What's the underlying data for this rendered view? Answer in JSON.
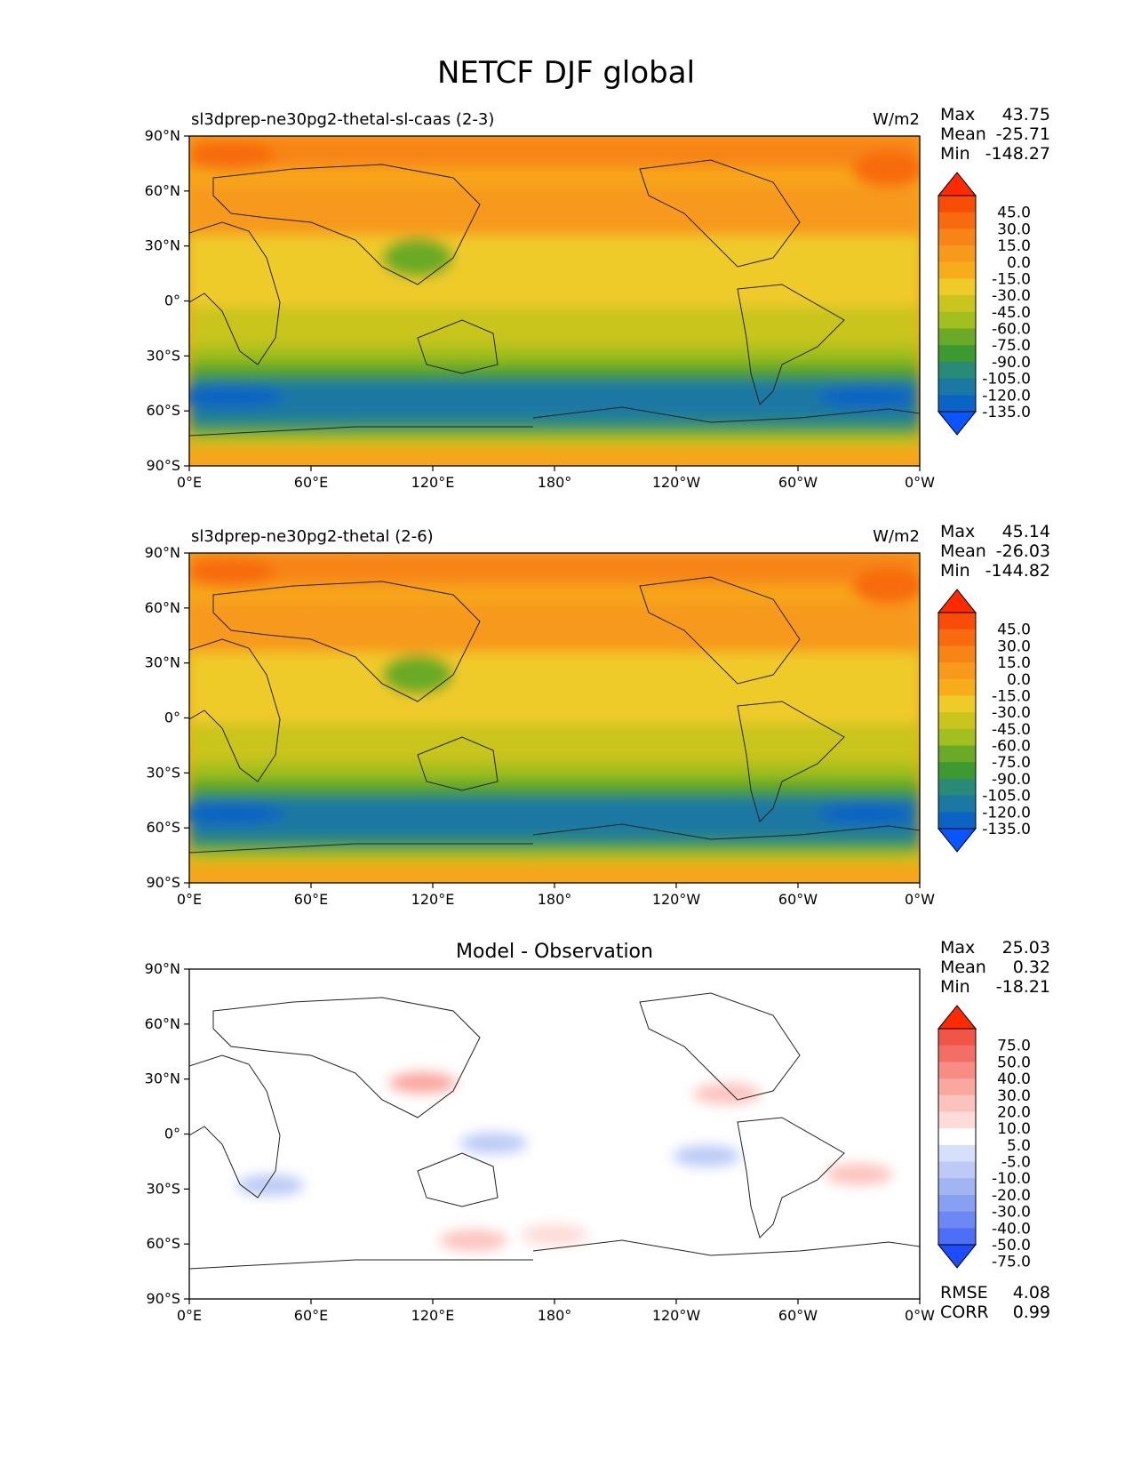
{
  "figure": {
    "title": "NETCF DJF global"
  },
  "colors": {
    "abs_levels": [
      "#0a55ff",
      "#0b63c4",
      "#1a78a3",
      "#2a8a78",
      "#3c9a30",
      "#6aaa28",
      "#a3bf1f",
      "#c9c51e",
      "#efcb2a",
      "#f7ad1b",
      "#f7991a",
      "#f78417",
      "#f76a0f",
      "#f74d08",
      "#ff2a00"
    ],
    "diff_levels": [
      "#1e4cff",
      "#4d6ef7",
      "#6c88f2",
      "#889ff2",
      "#a2b5f2",
      "#bccaf5",
      "#d6e0fa",
      "#ffffff",
      "#fddbd8",
      "#fcc2bd",
      "#f9a79f",
      "#f68c83",
      "#f36f65",
      "#f05547",
      "#ff2a00"
    ]
  },
  "chart_data": [
    {
      "type": "heatmap",
      "title": "sl3dprep-ne30pg2-thetal-sl-caas (2-3)",
      "units": "W/m2",
      "stats": [
        {
          "label": "Max",
          "value": "43.75"
        },
        {
          "label": "Mean",
          "value": "-25.71"
        },
        {
          "label": "Min",
          "value": "-148.27"
        }
      ],
      "colorbar_ticks": [
        "45.0",
        "30.0",
        "15.0",
        "0.0",
        "-15.0",
        "-30.0",
        "-45.0",
        "-60.0",
        "-75.0",
        "-90.0",
        "-105.0",
        "-120.0",
        "-135.0"
      ],
      "xticks": [
        "0°E",
        "60°E",
        "120°E",
        "180°",
        "120°W",
        "60°W",
        "0°W"
      ],
      "yticks": [
        "90°N",
        "60°N",
        "30°N",
        "0°",
        "30°S",
        "60°S",
        "90°S"
      ],
      "xlim": [
        0,
        360
      ],
      "ylim": [
        -90,
        90
      ],
      "field_by_latitude": [
        {
          "lat": 90,
          "value": 5
        },
        {
          "lat": 75,
          "value": 15
        },
        {
          "lat": 60,
          "value": 0
        },
        {
          "lat": 45,
          "value": -15
        },
        {
          "lat": 30,
          "value": -22
        },
        {
          "lat": 15,
          "value": -30
        },
        {
          "lat": 0,
          "value": -35
        },
        {
          "lat": -15,
          "value": -40
        },
        {
          "lat": -30,
          "value": -60
        },
        {
          "lat": -40,
          "value": -90
        },
        {
          "lat": -50,
          "value": -120
        },
        {
          "lat": -58,
          "value": -110
        },
        {
          "lat": -65,
          "value": -60
        },
        {
          "lat": -75,
          "value": -5
        },
        {
          "lat": -90,
          "value": 5
        }
      ]
    },
    {
      "type": "heatmap",
      "title": "sl3dprep-ne30pg2-thetal (2-6)",
      "units": "W/m2",
      "stats": [
        {
          "label": "Max",
          "value": "45.14"
        },
        {
          "label": "Mean",
          "value": "-26.03"
        },
        {
          "label": "Min",
          "value": "-144.82"
        }
      ],
      "colorbar_ticks": [
        "45.0",
        "30.0",
        "15.0",
        "0.0",
        "-15.0",
        "-30.0",
        "-45.0",
        "-60.0",
        "-75.0",
        "-90.0",
        "-105.0",
        "-120.0",
        "-135.0"
      ],
      "xticks": [
        "0°E",
        "60°E",
        "120°E",
        "180°",
        "120°W",
        "60°W",
        "0°W"
      ],
      "yticks": [
        "90°N",
        "60°N",
        "30°N",
        "0°",
        "30°S",
        "60°S",
        "90°S"
      ],
      "xlim": [
        0,
        360
      ],
      "ylim": [
        -90,
        90
      ],
      "field_by_latitude": [
        {
          "lat": 90,
          "value": 5
        },
        {
          "lat": 75,
          "value": 15
        },
        {
          "lat": 60,
          "value": 0
        },
        {
          "lat": 45,
          "value": -15
        },
        {
          "lat": 30,
          "value": -22
        },
        {
          "lat": 15,
          "value": -30
        },
        {
          "lat": 0,
          "value": -35
        },
        {
          "lat": -15,
          "value": -40
        },
        {
          "lat": -30,
          "value": -60
        },
        {
          "lat": -40,
          "value": -90
        },
        {
          "lat": -50,
          "value": -120
        },
        {
          "lat": -58,
          "value": -110
        },
        {
          "lat": -65,
          "value": -60
        },
        {
          "lat": -75,
          "value": -5
        },
        {
          "lat": -90,
          "value": 5
        }
      ]
    },
    {
      "type": "heatmap",
      "title": "Model - Observation",
      "units": "",
      "stats": [
        {
          "label": "Max",
          "value": "25.03"
        },
        {
          "label": "Mean",
          "value": "0.32"
        },
        {
          "label": "Min",
          "value": "-18.21"
        }
      ],
      "extra_stats": [
        {
          "label": "RMSE",
          "value": "4.08"
        },
        {
          "label": "CORR",
          "value": "0.99"
        }
      ],
      "colorbar_ticks": [
        "75.0",
        "50.0",
        "40.0",
        "30.0",
        "20.0",
        "10.0",
        "5.0",
        "-5.0",
        "-10.0",
        "-20.0",
        "-30.0",
        "-40.0",
        "-50.0",
        "-75.0"
      ],
      "xticks": [
        "0°E",
        "60°E",
        "120°E",
        "180°",
        "120°W",
        "60°W",
        "0°W"
      ],
      "yticks": [
        "90°N",
        "60°N",
        "30°N",
        "0°",
        "30°S",
        "60°S",
        "90°S"
      ],
      "xlim": [
        0,
        360
      ],
      "ylim": [
        -90,
        90
      ],
      "anomalies": [
        {
          "lon": 115,
          "lat": 28,
          "value": 20
        },
        {
          "lon": 265,
          "lat": 22,
          "value": 15
        },
        {
          "lon": 140,
          "lat": -58,
          "value": 10
        },
        {
          "lon": 180,
          "lat": -55,
          "value": 5
        },
        {
          "lon": 150,
          "lat": -5,
          "value": -10
        },
        {
          "lon": 40,
          "lat": -28,
          "value": -10
        },
        {
          "lon": 255,
          "lat": -12,
          "value": -10
        },
        {
          "lon": 330,
          "lat": -22,
          "value": 10
        }
      ]
    }
  ]
}
